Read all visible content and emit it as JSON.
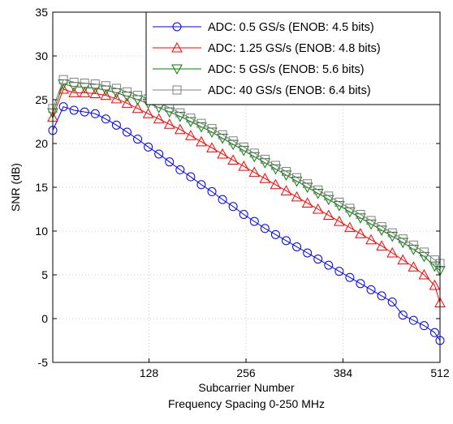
{
  "chart_data": {
    "type": "line",
    "title": "",
    "xlabel": "Subcarrier Number",
    "xlabel2": "Frequency Spacing 0-250 MHz",
    "ylabel": "SNR (dB)",
    "xlim": [
      1,
      512
    ],
    "ylim": [
      -5,
      35
    ],
    "xticks": [
      128,
      256,
      384,
      512
    ],
    "yticks": [
      -5,
      0,
      5,
      10,
      15,
      20,
      25,
      30,
      35
    ],
    "grid": true,
    "legend_position": "top-right",
    "x": [
      1,
      15,
      29,
      43,
      57,
      71,
      85,
      99,
      113,
      127,
      141,
      155,
      169,
      183,
      197,
      211,
      225,
      239,
      253,
      267,
      281,
      295,
      309,
      323,
      337,
      351,
      365,
      379,
      393,
      407,
      421,
      435,
      449,
      463,
      477,
      491,
      505,
      512
    ],
    "series": [
      {
        "name": "ADC: 0.5 GS/s (ENOB: 4.5 bits)",
        "color": "#0000ff",
        "marker": "circle",
        "values": [
          21.5,
          24.2,
          23.8,
          23.6,
          23.4,
          22.8,
          22.1,
          21.3,
          20.5,
          19.6,
          18.8,
          17.9,
          17.0,
          16.2,
          15.3,
          14.5,
          13.6,
          12.8,
          11.9,
          11.1,
          10.3,
          9.6,
          8.9,
          8.2,
          7.5,
          6.8,
          6.1,
          5.4,
          4.7,
          4.0,
          3.3,
          2.6,
          1.9,
          0.4,
          -0.2,
          -0.8,
          -1.6,
          -2.5
        ]
      },
      {
        "name": "ADC: 1.25 GS/s (ENOB: 4.8 bits)",
        "color": "#ff0000",
        "marker": "triangle-up",
        "values": [
          23.0,
          26.2,
          25.8,
          25.8,
          25.7,
          25.5,
          25.1,
          24.6,
          24.0,
          23.4,
          22.8,
          22.2,
          21.6,
          20.9,
          20.2,
          19.5,
          18.8,
          18.1,
          17.4,
          16.7,
          16.0,
          15.3,
          14.6,
          13.9,
          13.2,
          12.5,
          11.8,
          11.1,
          10.4,
          9.7,
          9.0,
          8.3,
          7.5,
          6.7,
          5.9,
          5.0,
          3.8,
          1.8
        ]
      },
      {
        "name": "ADC: 5 GS/s (ENOB: 5.6 bits)",
        "color": "#008000",
        "marker": "triangle-down",
        "values": [
          23.5,
          26.8,
          26.5,
          26.4,
          26.3,
          26.1,
          25.8,
          25.4,
          25.0,
          24.6,
          24.1,
          23.6,
          23.1,
          22.5,
          21.9,
          21.3,
          20.6,
          19.9,
          19.2,
          18.5,
          17.8,
          17.1,
          16.4,
          15.7,
          15.0,
          14.3,
          13.6,
          12.9,
          12.2,
          11.5,
          10.8,
          10.1,
          9.4,
          8.7,
          7.9,
          7.1,
          6.0,
          5.5
        ]
      },
      {
        "name": "ADC: 40 GS/s (ENOB: 6.4 bits)",
        "color": "#808080",
        "marker": "square",
        "values": [
          24.0,
          27.3,
          27.0,
          26.9,
          26.8,
          26.6,
          26.3,
          25.9,
          25.5,
          25.1,
          24.6,
          24.1,
          23.5,
          22.9,
          22.3,
          21.7,
          21.0,
          20.3,
          19.6,
          18.9,
          18.2,
          17.5,
          16.8,
          16.1,
          15.4,
          14.7,
          14.0,
          13.3,
          12.6,
          11.9,
          11.2,
          10.5,
          9.8,
          9.1,
          8.4,
          7.6,
          6.7,
          6.3
        ]
      }
    ]
  }
}
